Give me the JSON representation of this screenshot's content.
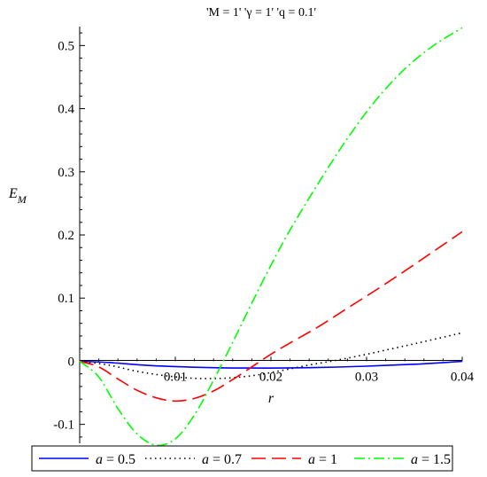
{
  "chart_data": {
    "type": "line",
    "title": "'M = 1' 'γ = 1' 'q = 0.1'",
    "xlabel": "r",
    "ylabel": "E_M",
    "xlim": [
      0,
      0.04
    ],
    "ylim": [
      -0.13,
      0.53
    ],
    "x_ticks": [
      "0.01",
      "0.02",
      "0.03",
      "0.04"
    ],
    "y_ticks": [
      "-0.1",
      "0",
      "0.1",
      "0.2",
      "0.3",
      "0.4",
      "0.5"
    ],
    "legend_placement": "bottom",
    "series": [
      {
        "name": "a = 0.5",
        "color": "#0000ff",
        "dash": "solid",
        "x": [
          0,
          0.003,
          0.006,
          0.009,
          0.012,
          0.015,
          0.018,
          0.021,
          0.024,
          0.027,
          0.03,
          0.033,
          0.036,
          0.04
        ],
        "y": [
          0,
          -0.002,
          -0.0055,
          -0.008,
          -0.0095,
          -0.0105,
          -0.0108,
          -0.0108,
          -0.0102,
          -0.0092,
          -0.0078,
          -0.006,
          -0.004,
          -0.0002
        ]
      },
      {
        "name": "a = 0.7",
        "color": "#000000",
        "dash": "dotted",
        "x": [
          0,
          0.003,
          0.006,
          0.009,
          0.012,
          0.015,
          0.018,
          0.021,
          0.024,
          0.027,
          0.03,
          0.033,
          0.036,
          0.04
        ],
        "y": [
          0,
          -0.006,
          -0.016,
          -0.023,
          -0.027,
          -0.027,
          -0.023,
          -0.015,
          -0.006,
          0.002,
          0.011,
          0.021,
          0.031,
          0.045
        ]
      },
      {
        "name": "a = 1",
        "color": "#ff0000",
        "dash": "long-dash",
        "x": [
          0,
          0.002,
          0.004,
          0.006,
          0.008,
          0.01,
          0.012,
          0.014,
          0.016,
          0.018,
          0.02,
          0.022,
          0.025,
          0.028,
          0.031,
          0.034,
          0.037,
          0.04
        ],
        "y": [
          0,
          -0.009,
          -0.028,
          -0.046,
          -0.058,
          -0.063,
          -0.059,
          -0.047,
          -0.029,
          -0.009,
          0.011,
          0.029,
          0.055,
          0.084,
          0.113,
          0.143,
          0.174,
          0.205
        ]
      },
      {
        "name": "a = 1.5",
        "color": "#00ff00",
        "dash": "dash-dot",
        "x": [
          0,
          0.002,
          0.004,
          0.006,
          0.008,
          0.01,
          0.012,
          0.014,
          0.016,
          0.018,
          0.02,
          0.022,
          0.025,
          0.028,
          0.031,
          0.034,
          0.037,
          0.04
        ],
        "y": [
          0,
          -0.025,
          -0.075,
          -0.115,
          -0.133,
          -0.123,
          -0.085,
          -0.03,
          0.03,
          0.092,
          0.152,
          0.208,
          0.283,
          0.353,
          0.414,
          0.463,
          0.5,
          0.528
        ]
      }
    ]
  }
}
